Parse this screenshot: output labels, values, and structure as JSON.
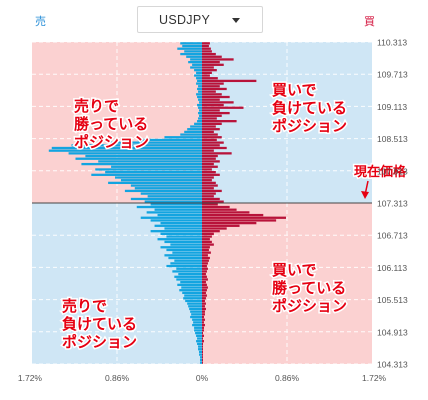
{
  "header": {
    "sell_label": "売",
    "buy_label": "買",
    "pair_selector": {
      "value": "USDJPY",
      "icon": "chevron-down-icon"
    }
  },
  "colors": {
    "sell_bar": "#13a4e0",
    "buy_bar": "#b8133a",
    "profit_zone": "#fbd1d1",
    "loss_zone": "#cfe6f5",
    "label_text": "#e60012",
    "price_line": "#444444"
  },
  "chart_data": {
    "type": "bar",
    "orientation": "horizontal",
    "title": "",
    "y_ticks": [
      "110.313",
      "109.713",
      "109.113",
      "108.513",
      "107.913",
      "107.313",
      "106.713",
      "106.113",
      "105.513",
      "104.913",
      "104.313"
    ],
    "x_ticks": [
      "1.72%",
      "0.86%",
      "0%",
      "0.86%",
      "1.72%"
    ],
    "xlim": [
      -1.72,
      1.72
    ],
    "ylim": [
      104.313,
      110.313
    ],
    "current_price": 107.313,
    "current_price_label": "現在価格",
    "zone_labels": {
      "top_left": [
        "売りで",
        "勝っている",
        "ポジション"
      ],
      "top_right": [
        "買いで",
        "負けている",
        "ポジション"
      ],
      "bottom_left": [
        "売りで",
        "負けている",
        "ポジション"
      ],
      "bottom_right": [
        "買いで",
        "勝っている",
        "ポジション"
      ]
    },
    "bin_size": 0.05,
    "series": [
      {
        "name": "売",
        "side": "left",
        "color": "#13a4e0",
        "values": [
          0.22,
          0.2,
          0.25,
          0.18,
          0.22,
          0.16,
          0.12,
          0.14,
          0.1,
          0.12,
          0.08,
          0.06,
          0.08,
          0.06,
          0.05,
          0.06,
          0.04,
          0.05,
          0.04,
          0.06,
          0.05,
          0.04,
          0.03,
          0.05,
          0.04,
          0.03,
          0.04,
          0.03,
          0.04,
          0.05,
          0.08,
          0.12,
          0.15,
          0.18,
          0.22,
          0.38,
          0.65,
          0.95,
          1.32,
          1.52,
          1.55,
          1.35,
          1.18,
          1.28,
          1.05,
          1.22,
          0.92,
          1.08,
          0.98,
          1.12,
          0.88,
          0.82,
          0.95,
          0.72,
          0.68,
          0.78,
          0.62,
          0.55,
          0.72,
          0.58,
          0.52,
          0.66,
          0.48,
          0.56,
          0.45,
          0.62,
          0.52,
          0.42,
          0.48,
          0.38,
          0.52,
          0.42,
          0.36,
          0.45,
          0.38,
          0.32,
          0.42,
          0.36,
          0.3,
          0.38,
          0.34,
          0.28,
          0.32,
          0.36,
          0.26,
          0.3,
          0.24,
          0.28,
          0.26,
          0.22,
          0.25,
          0.21,
          0.23,
          0.2,
          0.18,
          0.19,
          0.17,
          0.15,
          0.14,
          0.13,
          0.12,
          0.11,
          0.12,
          0.1,
          0.09,
          0.1,
          0.08,
          0.08,
          0.07,
          0.06,
          0.05,
          0.06,
          0.05,
          0.04,
          0.04,
          0.03,
          0.03,
          0.02,
          0.02,
          0.02
        ]
      },
      {
        "name": "買",
        "side": "right",
        "color": "#b8133a",
        "values": [
          0.08,
          0.07,
          0.09,
          0.1,
          0.14,
          0.2,
          0.32,
          0.18,
          0.22,
          0.12,
          0.15,
          0.1,
          0.08,
          0.16,
          0.55,
          0.22,
          0.18,
          0.25,
          0.14,
          0.2,
          0.28,
          0.18,
          0.32,
          0.22,
          0.42,
          0.18,
          0.28,
          0.2,
          0.15,
          0.35,
          0.2,
          0.14,
          0.18,
          0.12,
          0.16,
          0.2,
          0.15,
          0.22,
          0.18,
          0.25,
          0.12,
          0.3,
          0.16,
          0.14,
          0.18,
          0.12,
          0.16,
          0.1,
          0.14,
          0.18,
          0.12,
          0.1,
          0.14,
          0.16,
          0.12,
          0.2,
          0.14,
          0.12,
          0.18,
          0.22,
          0.16,
          0.28,
          0.35,
          0.48,
          0.62,
          0.85,
          0.75,
          0.55,
          0.38,
          0.25,
          0.18,
          0.12,
          0.1,
          0.08,
          0.1,
          0.12,
          0.08,
          0.07,
          0.09,
          0.06,
          0.08,
          0.07,
          0.06,
          0.05,
          0.06,
          0.05,
          0.04,
          0.05,
          0.06,
          0.04,
          0.05,
          0.06,
          0.05,
          0.04,
          0.05,
          0.04,
          0.03,
          0.04,
          0.03,
          0.04,
          0.03,
          0.03,
          0.02,
          0.03,
          0.02,
          0.03,
          0.02,
          0.02,
          0.01,
          0.02,
          0.01,
          0.02,
          0.01,
          0.01,
          0.01,
          0.01,
          0.01,
          0.01,
          0.01,
          0.01
        ]
      }
    ]
  }
}
